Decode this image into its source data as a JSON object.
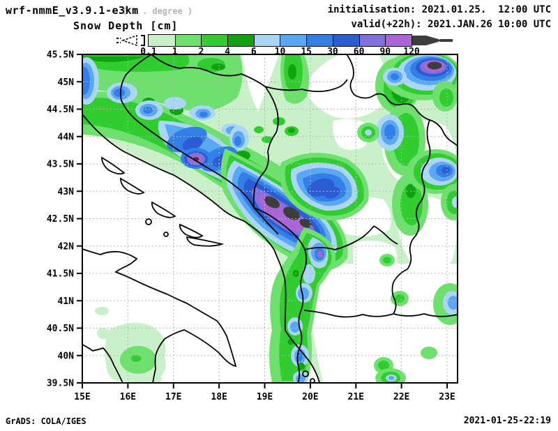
{
  "header": {
    "model_title": "wrf-nmmE_v3.9.1-e3km",
    "grid_note": "( x . degree )",
    "product_title": "Snow Depth [cm]",
    "init_label": "initialisation: 2021.01.25.  12:00 UTC",
    "valid_label": "valid(+22h): 2021.JAN.26 10:00 UTC"
  },
  "colorbar": {
    "tick_labels": [
      "0.1",
      "1",
      "2",
      "4",
      "6",
      "10",
      "15",
      "30",
      "60",
      "90",
      "120"
    ],
    "segment_colors": [
      "#c9f0c9",
      "#6ee06e",
      "#30cc30",
      "#0fa30f",
      "#abd7f6",
      "#5aa7f3",
      "#337fe8",
      "#2b5cd3",
      "#8070dc",
      "#aa66d6"
    ],
    "overflow_color": "#3d3d3d",
    "units": "cm"
  },
  "map": {
    "lat_labels": [
      "45.5N",
      "45N",
      "44.5N",
      "44N",
      "43.5N",
      "43N",
      "42.5N",
      "42N",
      "41.5N",
      "41N",
      "40.5N",
      "40N",
      "39.5N"
    ],
    "lon_labels": [
      "15E",
      "16E",
      "17E",
      "18E",
      "19E",
      "20E",
      "21E",
      "22E",
      "23E"
    ]
  },
  "footer": {
    "left": "GrADS: COLA/IGES",
    "right": "2021-01-25-22:19"
  },
  "chart_data": {
    "type": "heatmap",
    "title": "Snow Depth [cm]",
    "model": "wrf-nmmE_v3.9.1-e3km",
    "initialisation": "2021.01.25. 12:00 UTC",
    "valid": "2021.JAN.26 10:00 UTC (+22h)",
    "region": {
      "lon_range_deg_e": [
        15,
        23.2
      ],
      "lat_range_deg_n": [
        39.5,
        45.5
      ]
    },
    "legend_levels_cm": [
      0.1,
      1,
      2,
      4,
      6,
      10,
      15,
      30,
      60,
      90,
      120
    ],
    "legend_colors": [
      "#c9f0c9",
      "#6ee06e",
      "#30cc30",
      "#0fa30f",
      "#abd7f6",
      "#5aa7f3",
      "#337fe8",
      "#2b5cd3",
      "#8070dc",
      "#aa66d6",
      "#3d3d3d"
    ],
    "notes": "Snow maxima >120cm (gray cores) over Dinaric Alps (Montenegro/N-Albania ~19-20E,42.5-43.2N), central Bosnia (~17E,43.6N) and S-Carpathians (~22.5E,45.3N); broad 0.1-6cm field over Bosnia/Serbia; snow band along Albania/Macedonia border to 39.5N; sea and most of Italy snow-free"
  }
}
